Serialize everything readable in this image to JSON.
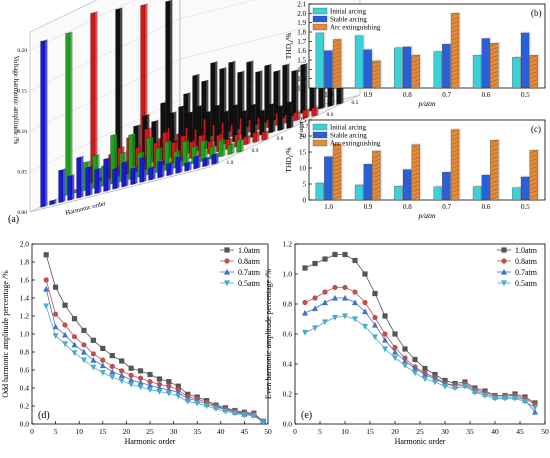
{
  "chart_data": [
    {
      "panel": "(a)",
      "type": "bar",
      "note_3d": true,
      "ylabel": "Voltage harmonic amplitude /%",
      "xlabel": "Harmonic order",
      "zlabel": "p/atm",
      "y_ticks": [
        "0.00",
        "0.05",
        "0.10",
        "0.15",
        "0.20"
      ],
      "ylim": [
        0,
        0.21
      ],
      "z_ticks": [
        "1.0",
        "0.9",
        "0.8",
        "0.7",
        "0.6",
        "0.5"
      ],
      "series": [
        {
          "name": "1.0",
          "color": "#1a1ad0",
          "values": [
            0.205,
            0.005,
            0.04,
            0.03,
            0.05,
            0.035,
            0.03,
            0.04,
            0.025,
            0.03,
            0.02,
            0.03,
            0.015,
            0.02,
            0.015,
            0.02,
            0.01,
            0.015,
            0.01,
            0.012
          ]
        },
        {
          "name": "0.9",
          "color": "#1fa01f",
          "values": [
            0.2,
            0.004,
            0.035,
            0.04,
            0.025,
            0.06,
            0.035,
            0.055,
            0.03,
            0.045,
            0.03,
            0.035,
            0.02,
            0.03,
            0.02,
            0.025,
            0.015,
            0.02,
            0.012,
            0.015
          ]
        },
        {
          "name": "0.8",
          "color": "#d01a1a",
          "values": [
            0.21,
            0.004,
            0.03,
            0.035,
            0.045,
            0.03,
            0.05,
            0.03,
            0.04,
            0.025,
            0.03,
            0.02,
            0.025,
            0.015,
            0.02,
            0.012,
            0.015,
            0.01,
            0.012,
            0.01
          ]
        },
        {
          "name": "0.7",
          "color": "#111111",
          "values": [
            0.2,
            0.005,
            0.05,
            0.06,
            0.05,
            0.07,
            0.055,
            0.06,
            0.05,
            0.055,
            0.045,
            0.05,
            0.04,
            0.045,
            0.035,
            0.04,
            0.03,
            0.035,
            0.03,
            0.032
          ]
        },
        {
          "name": "0.6",
          "color": "#d01a1a",
          "values": [
            0.19,
            0.004,
            0.02,
            0.03,
            0.02,
            0.025,
            0.02,
            0.03,
            0.02,
            0.02,
            0.015,
            0.02,
            0.015,
            0.015,
            0.01,
            0.015,
            0.01,
            0.01,
            0.01,
            0.01
          ]
        },
        {
          "name": "0.5",
          "color": "#111111",
          "values": [
            0.18,
            0.005,
            0.06,
            0.08,
            0.07,
            0.09,
            0.08,
            0.085,
            0.07,
            0.08,
            0.065,
            0.07,
            0.06,
            0.065,
            0.055,
            0.06,
            0.05,
            0.055,
            0.05,
            0.05
          ]
        }
      ]
    },
    {
      "panel": "(b)",
      "type": "bar",
      "ylabel": "THD",
      "ylabel_sub": "u",
      "ylabel_unit": "/%",
      "xlabel": "p/atm",
      "categories": [
        "1.0",
        "0.9",
        "0.8",
        "0.7",
        "0.6",
        "0.5"
      ],
      "ylim": [
        1.2,
        2.1
      ],
      "y_ticks": [
        "1.2",
        "1.3",
        "1.4",
        "1.5",
        "1.6",
        "1.7",
        "1.8",
        "1.9",
        "2.0",
        "2.1"
      ],
      "series": [
        {
          "name": "Initial arcing",
          "color": "#3ad2d6",
          "values": [
            1.79,
            1.76,
            1.63,
            1.59,
            1.55,
            1.53
          ]
        },
        {
          "name": "Stable arcing",
          "color": "#2a5fd8",
          "values": [
            1.6,
            1.61,
            1.64,
            1.67,
            1.73,
            1.79
          ]
        },
        {
          "name": "Arc extinguishing",
          "color": "#e08a3a",
          "values": [
            1.72,
            1.49,
            1.55,
            2.0,
            1.68,
            1.55
          ]
        }
      ]
    },
    {
      "panel": "(c)",
      "type": "bar",
      "ylabel": "THD",
      "ylabel_sub": "i",
      "ylabel_unit": "/%",
      "xlabel": "p/atm",
      "categories": [
        "1.0",
        "0.9",
        "0.8",
        "0.7",
        "0.6",
        "0.5"
      ],
      "ylim": [
        0,
        25
      ],
      "y_ticks": [
        "0",
        "5",
        "10",
        "15",
        "20",
        "25"
      ],
      "series": [
        {
          "name": "Initial arcing",
          "color": "#3ad2d6",
          "values": [
            5.3,
            4.7,
            4.3,
            4.1,
            4.2,
            3.8
          ]
        },
        {
          "name": "Stable arcing",
          "color": "#2a5fd8",
          "values": [
            13.5,
            11.2,
            9.5,
            8.7,
            7.8,
            7.2
          ]
        },
        {
          "name": "Arc extinguishing",
          "color": "#e08a3a",
          "values": [
            17.5,
            15.3,
            17.3,
            22.0,
            18.7,
            15.5
          ]
        }
      ]
    },
    {
      "panel": "(d)",
      "type": "line",
      "ylabel": "Odd harmonic amplitude percentage /%",
      "xlabel": "Harmonic order",
      "xlim": [
        0,
        50
      ],
      "ylim": [
        0,
        2.0
      ],
      "x_ticks": [
        "0",
        "5",
        "10",
        "15",
        "20",
        "25",
        "30",
        "35",
        "40",
        "45",
        "50"
      ],
      "y_ticks": [
        "0.0",
        "0.2",
        "0.4",
        "0.6",
        "0.8",
        "1.0",
        "1.2",
        "1.4",
        "1.6",
        "1.8",
        "2.0"
      ],
      "x": [
        3,
        5,
        7,
        9,
        11,
        13,
        15,
        17,
        19,
        21,
        23,
        25,
        27,
        29,
        31,
        33,
        35,
        37,
        39,
        41,
        43,
        45,
        47,
        49
      ],
      "series": [
        {
          "name": "1.0atm",
          "color": "#555555",
          "marker": "square",
          "values": [
            1.88,
            1.52,
            1.32,
            1.17,
            1.04,
            0.93,
            0.84,
            0.76,
            0.7,
            0.62,
            0.59,
            0.55,
            0.5,
            0.47,
            0.42,
            0.33,
            0.3,
            0.26,
            0.21,
            0.18,
            0.15,
            0.13,
            0.12,
            0.03
          ]
        },
        {
          "name": "0.8atm",
          "color": "#c0504d",
          "marker": "circle",
          "values": [
            1.6,
            1.22,
            1.1,
            0.97,
            0.88,
            0.78,
            0.71,
            0.64,
            0.59,
            0.54,
            0.51,
            0.47,
            0.44,
            0.42,
            0.38,
            0.3,
            0.28,
            0.24,
            0.2,
            0.17,
            0.14,
            0.12,
            0.11,
            0.03
          ]
        },
        {
          "name": "0.7atm",
          "color": "#4472c4",
          "marker": "triangle",
          "values": [
            1.5,
            1.08,
            0.99,
            0.88,
            0.8,
            0.71,
            0.65,
            0.58,
            0.54,
            0.49,
            0.46,
            0.43,
            0.4,
            0.38,
            0.35,
            0.28,
            0.26,
            0.22,
            0.19,
            0.16,
            0.13,
            0.11,
            0.1,
            0.02
          ]
        },
        {
          "name": "0.5atm",
          "color": "#4bacc6",
          "marker": "tri-down",
          "values": [
            1.31,
            0.98,
            0.89,
            0.79,
            0.71,
            0.63,
            0.57,
            0.52,
            0.48,
            0.44,
            0.41,
            0.38,
            0.36,
            0.34,
            0.31,
            0.25,
            0.23,
            0.2,
            0.17,
            0.14,
            0.12,
            0.1,
            0.09,
            0.02
          ]
        }
      ],
      "legend": "top-right"
    },
    {
      "panel": "(e)",
      "type": "line",
      "ylabel": "Even harmonic amplitude percentage /%",
      "xlabel": "Harmonic order",
      "xlim": [
        0,
        50
      ],
      "ylim": [
        0,
        1.2
      ],
      "x_ticks": [
        "0",
        "5",
        "10",
        "15",
        "20",
        "25",
        "30",
        "35",
        "40",
        "45",
        "50"
      ],
      "y_ticks": [
        "0.0",
        "0.2",
        "0.4",
        "0.6",
        "0.8",
        "1.0",
        "1.2"
      ],
      "x": [
        2,
        4,
        6,
        8,
        10,
        12,
        14,
        16,
        18,
        20,
        22,
        24,
        26,
        28,
        30,
        32,
        34,
        36,
        38,
        40,
        42,
        44,
        46,
        48
      ],
      "series": [
        {
          "name": "1.0atm",
          "color": "#555555",
          "marker": "square",
          "values": [
            1.04,
            1.07,
            1.1,
            1.13,
            1.13,
            1.09,
            1.0,
            0.87,
            0.72,
            0.6,
            0.5,
            0.43,
            0.37,
            0.33,
            0.29,
            0.27,
            0.28,
            0.24,
            0.22,
            0.19,
            0.19,
            0.2,
            0.18,
            0.14
          ]
        },
        {
          "name": "0.8atm",
          "color": "#c0504d",
          "marker": "circle",
          "values": [
            0.81,
            0.84,
            0.88,
            0.91,
            0.91,
            0.88,
            0.81,
            0.71,
            0.6,
            0.51,
            0.44,
            0.38,
            0.34,
            0.31,
            0.27,
            0.26,
            0.27,
            0.23,
            0.21,
            0.19,
            0.19,
            0.19,
            0.17,
            0.13
          ]
        },
        {
          "name": "0.7atm",
          "color": "#4472c4",
          "marker": "triangle",
          "values": [
            0.74,
            0.77,
            0.81,
            0.84,
            0.84,
            0.81,
            0.75,
            0.66,
            0.56,
            0.48,
            0.42,
            0.37,
            0.33,
            0.3,
            0.27,
            0.25,
            0.26,
            0.22,
            0.2,
            0.18,
            0.18,
            0.18,
            0.16,
            0.08
          ]
        },
        {
          "name": "0.5atm",
          "color": "#4bacc6",
          "marker": "tri-down",
          "values": [
            0.61,
            0.64,
            0.68,
            0.71,
            0.72,
            0.7,
            0.65,
            0.58,
            0.5,
            0.44,
            0.39,
            0.34,
            0.3,
            0.28,
            0.25,
            0.24,
            0.25,
            0.21,
            0.19,
            0.17,
            0.17,
            0.17,
            0.15,
            0.11
          ]
        }
      ],
      "legend": "top-right"
    }
  ]
}
